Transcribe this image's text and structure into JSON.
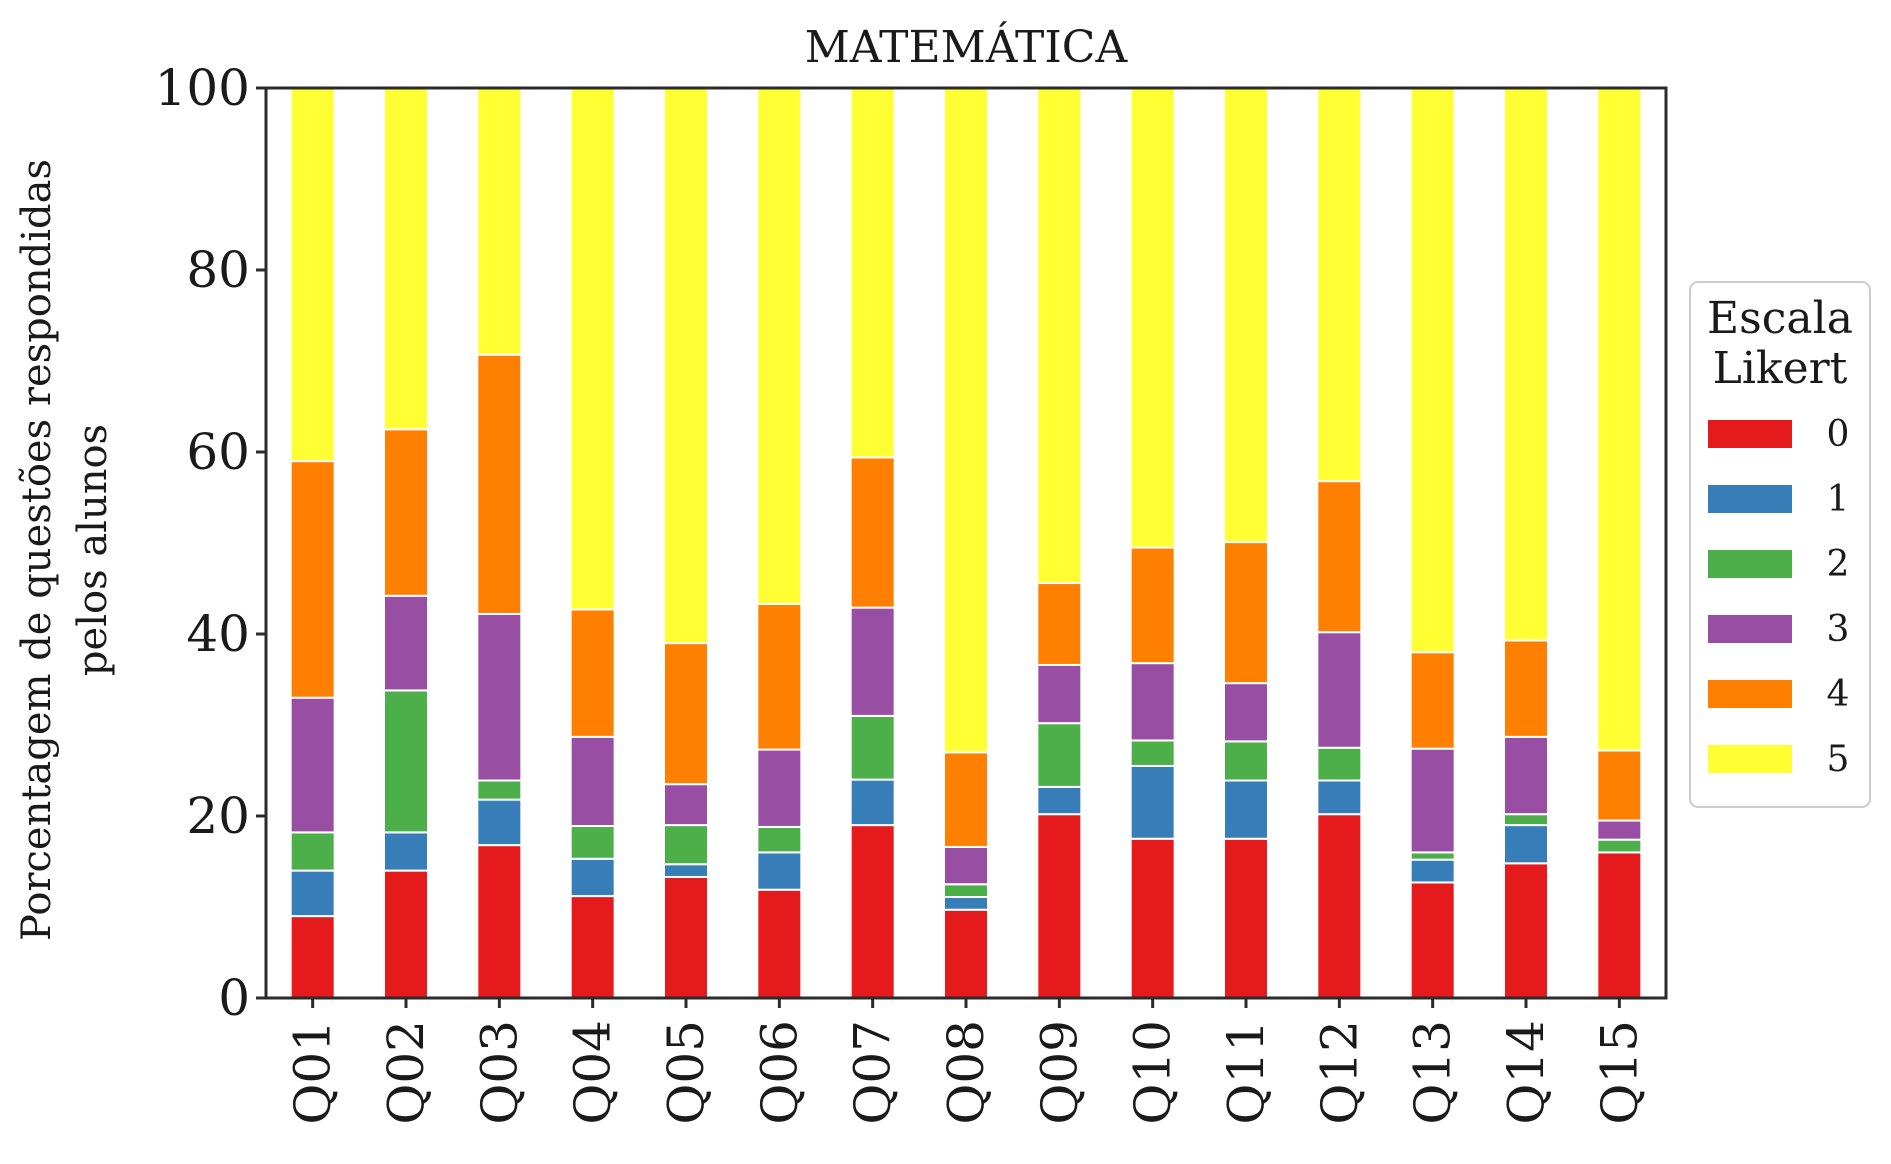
{
  "chart_data": {
    "type": "bar",
    "stacked": true,
    "title": "MATEMÁTICA",
    "ylabel": "Porcentagem de questões respondidas pelos alunos",
    "ylabel_lines": [
      "Porcentagem de questões respondidas",
      "pelos alunos"
    ],
    "xlabel": "",
    "ylim": [
      0,
      100
    ],
    "yticks": [
      "0",
      "20",
      "40",
      "60",
      "80",
      "100"
    ],
    "grid": false,
    "legend_position": "right",
    "legend_title_lines": [
      "Escala",
      "Likert"
    ],
    "categories": [
      "Q01",
      "Q02",
      "Q03",
      "Q04",
      "Q05",
      "Q06",
      "Q07",
      "Q08",
      "Q09",
      "Q10",
      "Q11",
      "Q12",
      "Q13",
      "Q14",
      "Q15"
    ],
    "series": [
      {
        "name": "0",
        "color": "#e41a1c",
        "values": [
          9,
          14,
          16.8,
          11.2,
          13.3,
          11.9,
          19,
          9.7,
          20.2,
          17.5,
          17.5,
          20.2,
          12.7,
          14.8,
          16
        ]
      },
      {
        "name": "1",
        "color": "#377eb8",
        "values": [
          5,
          4.2,
          5,
          4.1,
          1.4,
          4.1,
          5,
          1.4,
          3,
          8,
          6.4,
          3.7,
          2.5,
          4.2,
          0
        ]
      },
      {
        "name": "2",
        "color": "#4daf4a",
        "values": [
          4.2,
          15.6,
          2.1,
          3.6,
          4.3,
          2.8,
          7,
          1.4,
          7,
          2.8,
          4.3,
          3.6,
          0.8,
          1.2,
          1.4
        ]
      },
      {
        "name": "3",
        "color": "#984ea3",
        "values": [
          14.8,
          10.4,
          18.3,
          9.8,
          4.5,
          8.5,
          11.9,
          4.1,
          6.4,
          8.5,
          6.4,
          12.7,
          11.4,
          8.5,
          2.1
        ]
      },
      {
        "name": "4",
        "color": "#ff7f00",
        "values": [
          26,
          18.3,
          28.5,
          14,
          15.5,
          16,
          16.5,
          10.4,
          9,
          12.7,
          15.5,
          16.6,
          10.6,
          10.6,
          7.7
        ]
      },
      {
        "name": "5",
        "color": "#ffff33",
        "values": [
          41,
          37.5,
          29.3,
          57.3,
          61,
          56.7,
          40.6,
          73,
          54.4,
          50.5,
          49.9,
          43.2,
          62,
          60.7,
          72.8
        ]
      }
    ]
  }
}
